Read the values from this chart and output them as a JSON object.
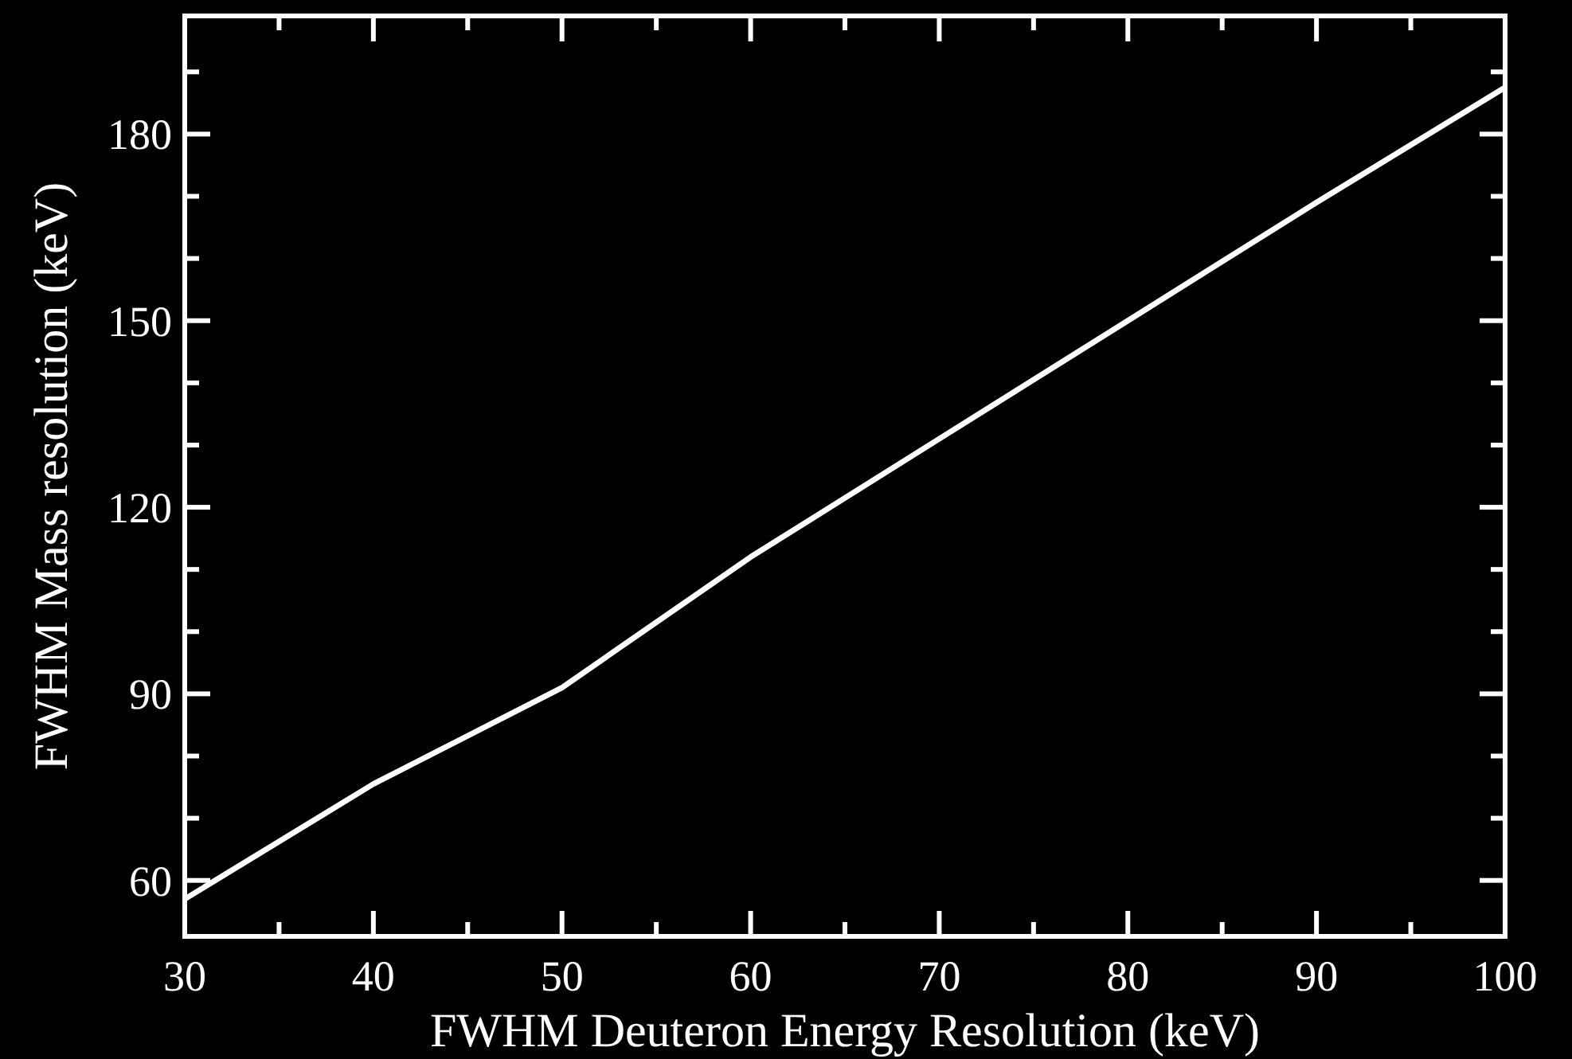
{
  "chart_data": {
    "type": "line",
    "xlabel": "FWHM Deuteron Energy Resolution (keV)",
    "ylabel": "FWHM Mass resolution (keV)",
    "x": [
      30,
      40,
      50,
      60,
      70,
      80,
      90,
      100
    ],
    "series": [
      {
        "color": "#ffffff",
        "values": [
          57,
          75.5,
          91,
          112,
          131,
          150,
          169,
          187.5
        ]
      }
    ],
    "xlim": [
      30,
      100
    ],
    "xticks": [
      30,
      40,
      50,
      60,
      70,
      80,
      90,
      100
    ],
    "ylim": [
      51,
      199
    ],
    "yticks": [
      60,
      90,
      120,
      150,
      180
    ],
    "grid": false,
    "marker": "none",
    "line_style": "solid"
  }
}
